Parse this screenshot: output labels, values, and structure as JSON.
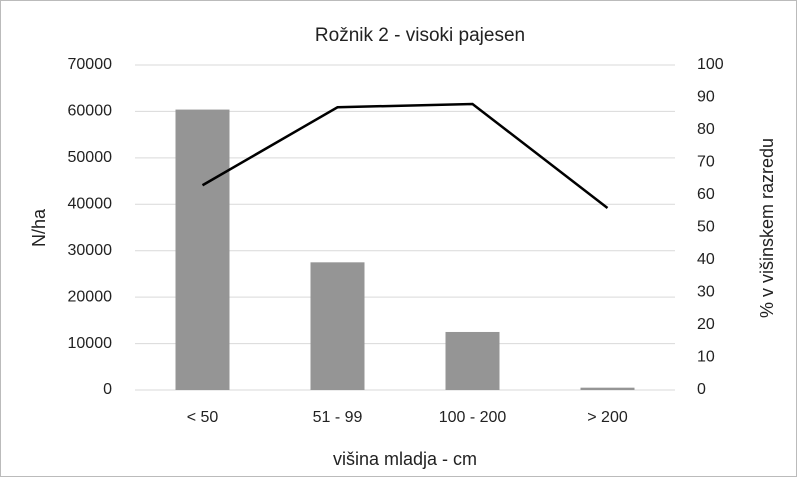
{
  "chart_data": {
    "type": "bar",
    "title": "Rožnik 2 - visoki pajesen",
    "x_label": "višina mladja - cm",
    "y_label": "N/ha",
    "y2_label": "% v višinskem razredu",
    "categories": [
      "< 50",
      "51 - 99",
      "100 - 200",
      "> 200"
    ],
    "series": [
      {
        "type": "bar",
        "color": "#959595",
        "values": [
          60400,
          27500,
          12500,
          500
        ]
      },
      {
        "type": "line",
        "axis": "y2",
        "color": "#000000",
        "values": [
          63,
          87,
          88,
          56
        ]
      }
    ],
    "ylim": [
      0,
      70000
    ],
    "yticks": [
      0,
      10000,
      20000,
      30000,
      40000,
      50000,
      60000,
      70000
    ],
    "y2lim": [
      0,
      100
    ],
    "y2ticks": [
      0,
      10,
      20,
      30,
      40,
      50,
      60,
      70,
      80,
      90,
      100
    ],
    "grid": true
  }
}
